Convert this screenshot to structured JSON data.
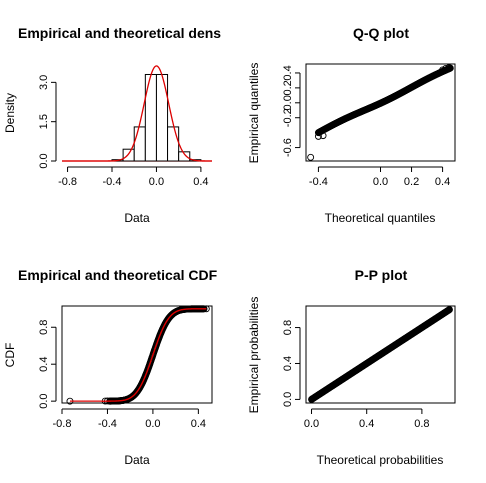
{
  "chart_data": [
    {
      "id": "density",
      "type": "histogram",
      "title": "Empirical and theoretical dens",
      "xlabel": "Data",
      "ylabel": "Density",
      "xlim": [
        -0.85,
        0.5
      ],
      "ylim": [
        0,
        3.7
      ],
      "x_ticks": [
        -0.8,
        -0.4,
        0.0,
        0.4
      ],
      "x_tick_labels": [
        "-0.8",
        "-0.4",
        "0.0",
        "0.4"
      ],
      "y_ticks": [
        0.0,
        1.5,
        3.0
      ],
      "y_tick_labels": [
        "0.0",
        "1.5",
        "3.0"
      ],
      "bins": [
        {
          "from": -0.4,
          "to": -0.3,
          "density": 0.05
        },
        {
          "from": -0.3,
          "to": -0.2,
          "density": 0.45
        },
        {
          "from": -0.2,
          "to": -0.1,
          "density": 1.3
        },
        {
          "from": -0.1,
          "to": 0.0,
          "density": 3.3
        },
        {
          "from": 0.0,
          "to": 0.1,
          "density": 3.3
        },
        {
          "from": 0.1,
          "to": 0.2,
          "density": 1.3
        },
        {
          "from": 0.2,
          "to": 0.3,
          "density": 0.35
        },
        {
          "from": 0.3,
          "to": 0.4,
          "density": 0.05
        }
      ],
      "theoretical_curve": {
        "distribution": "normal",
        "mean": 0.0,
        "sd": 0.11
      },
      "curve_color": "#dd0000",
      "bar_fill": "#ffffff"
    },
    {
      "id": "qq",
      "type": "scatter",
      "title": "Q-Q plot",
      "xlabel": "Theoretical quantiles",
      "ylabel": "Empirical quantiles",
      "xlim": [
        -0.48,
        0.48
      ],
      "ylim": [
        -0.78,
        0.52
      ],
      "x_ticks": [
        -0.4,
        0.0,
        0.2,
        0.4
      ],
      "x_tick_labels": [
        "-0.4",
        "0.0",
        "0.2",
        "0.4"
      ],
      "y_ticks": [
        -0.6,
        -0.2,
        0.0,
        0.2,
        0.4
      ],
      "y_tick_labels": [
        "-0.6",
        "-0.2",
        "0.0",
        "0.2",
        "0.4"
      ],
      "line": {
        "from": [
          -0.4,
          -0.4
        ],
        "to": [
          0.45,
          0.46
        ]
      },
      "outliers": [
        [
          -0.45,
          -0.73
        ],
        [
          -0.4,
          -0.45
        ],
        [
          -0.37,
          -0.44
        ],
        [
          0.4,
          0.44
        ],
        [
          0.42,
          0.46
        ],
        [
          0.44,
          0.47
        ]
      ]
    },
    {
      "id": "cdf",
      "type": "line",
      "title": "Empirical and theoretical CDF",
      "xlabel": "Data",
      "ylabel": "CDF",
      "xlim": [
        -0.8,
        0.52
      ],
      "ylim": [
        -0.02,
        1.03
      ],
      "x_ticks": [
        -0.8,
        -0.4,
        0.0,
        0.4
      ],
      "x_tick_labels": [
        "-0.8",
        "-0.4",
        "0.0",
        "0.4"
      ],
      "y_ticks": [
        0.0,
        0.4,
        0.8
      ],
      "y_tick_labels": [
        "0.0",
        "0.4",
        "0.8"
      ],
      "theoretical_curve": {
        "distribution": "normal",
        "mean": 0.0,
        "sd": 0.11
      },
      "empirical_points": [
        [
          -0.73,
          0.0
        ],
        [
          -0.42,
          0.001
        ],
        [
          -0.4,
          0.002
        ],
        [
          0.47,
          1.0
        ]
      ],
      "curve_color": "#dd0000"
    },
    {
      "id": "pp",
      "type": "scatter",
      "title": "P-P plot",
      "xlabel": "Theoretical probabilities",
      "ylabel": "Empirical probabilities",
      "xlim": [
        -0.04,
        1.04
      ],
      "ylim": [
        -0.04,
        1.04
      ],
      "x_ticks": [
        0.0,
        0.4,
        0.8
      ],
      "x_tick_labels": [
        "0.0",
        "0.4",
        "0.8"
      ],
      "y_ticks": [
        0.0,
        0.4,
        0.8
      ],
      "y_tick_labels": [
        "0.0",
        "0.4",
        "0.8"
      ],
      "line": {
        "from": [
          0.0,
          0.0
        ],
        "to": [
          1.0,
          1.0
        ]
      }
    }
  ]
}
